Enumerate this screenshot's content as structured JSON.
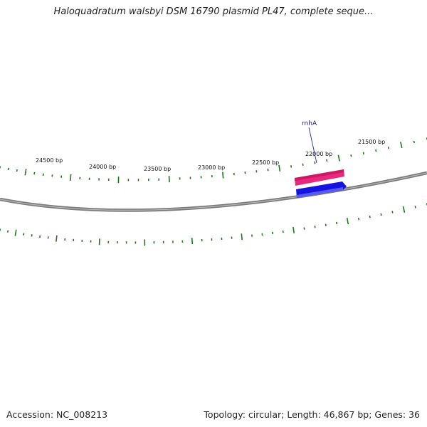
{
  "title": "Haloquadratum walsbyi DSM 16790 plasmid PL47, complete seque...",
  "accession": "Accession: NC_008213",
  "summary": "Topology: circular; Length: 46,867 bp; Genes: 36",
  "tick_labels": [
    {
      "bp": 21500,
      "text": "21500 bp"
    },
    {
      "bp": 22000,
      "text": "22000 bp"
    },
    {
      "bp": 22500,
      "text": "22500 bp"
    },
    {
      "bp": 23000,
      "text": "23000 bp"
    },
    {
      "bp": 23500,
      "text": "23500 bp"
    },
    {
      "bp": 24000,
      "text": "24000 bp"
    },
    {
      "bp": 24500,
      "text": "24500 bp"
    }
  ],
  "gene": {
    "label": "rnhA"
  },
  "colors": {
    "backbone": "#7a7a7a",
    "ticks": "#1a7a1a",
    "feature_top": "#e8287a",
    "feature_bottom": "#1414e0",
    "gene_label": "#1a1a8c"
  }
}
